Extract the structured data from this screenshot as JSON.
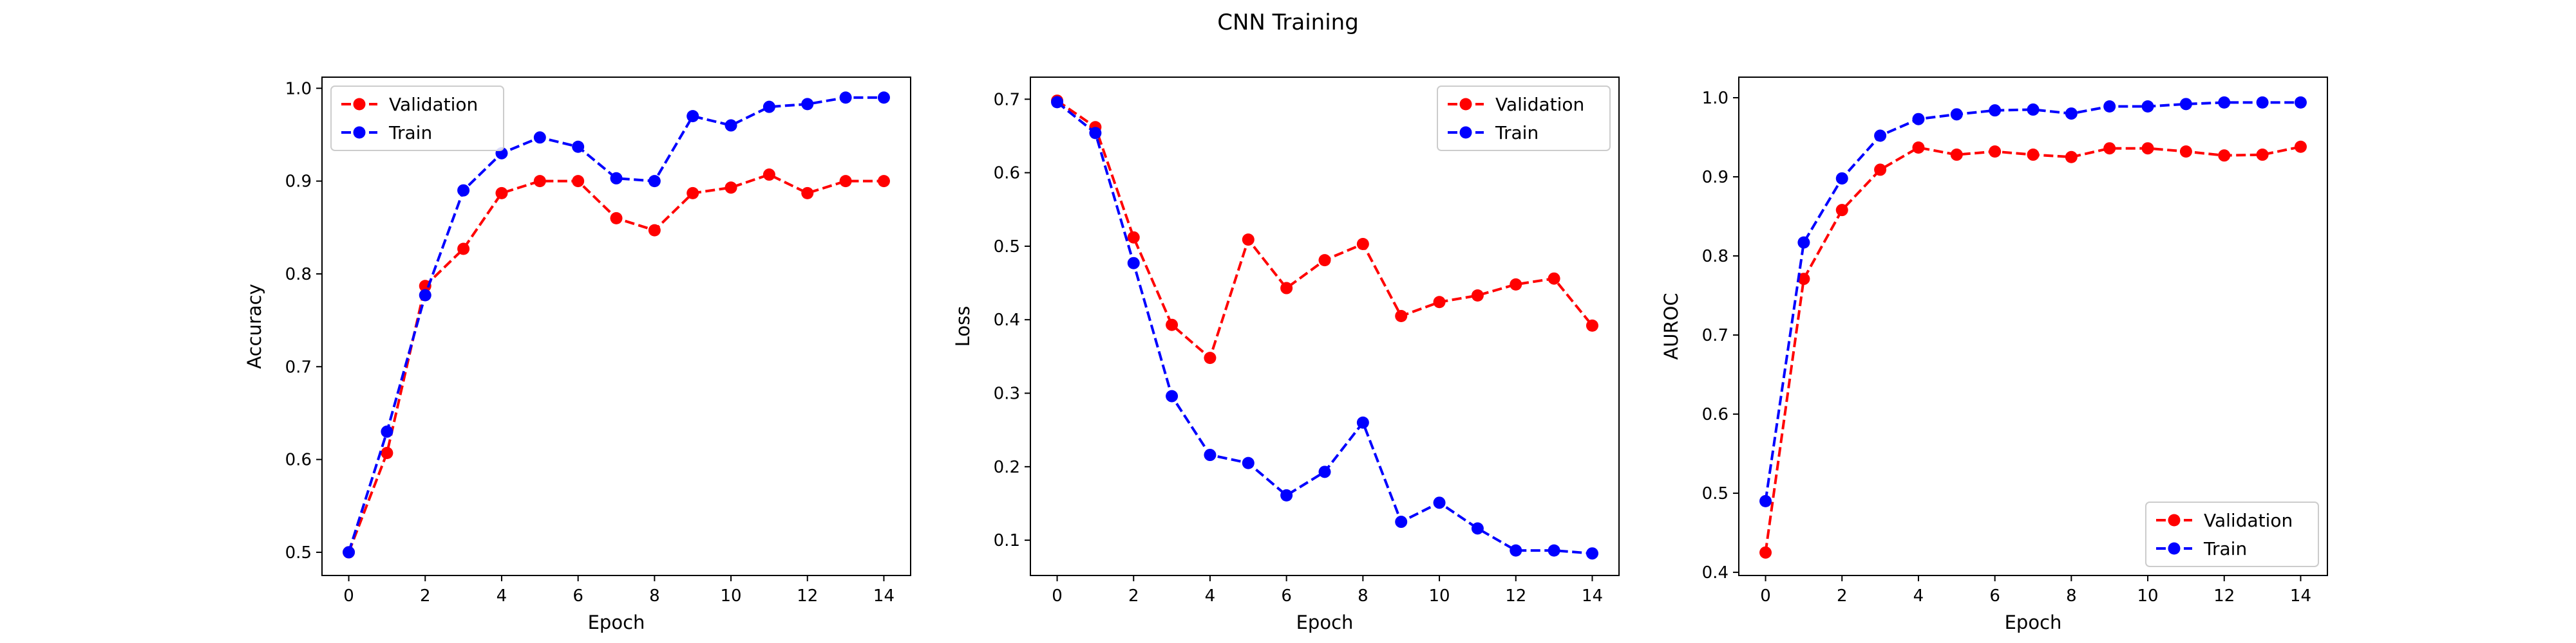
{
  "figure": {
    "title": "CNN Training"
  },
  "chart_data": [
    {
      "type": "line",
      "xlabel": "Epoch",
      "ylabel": "Accuracy",
      "x": [
        0,
        1,
        2,
        3,
        4,
        5,
        6,
        7,
        8,
        9,
        10,
        11,
        12,
        13,
        14
      ],
      "xticks": [
        0,
        2,
        4,
        6,
        8,
        10,
        12,
        14
      ],
      "xlim": [
        -0.7,
        14.7
      ],
      "yticks": [
        0.5,
        0.6,
        0.7,
        0.8,
        0.9,
        1.0
      ],
      "ytick_labels": [
        "0.5",
        "0.6",
        "0.7",
        "0.8",
        "0.9",
        "1.0"
      ],
      "ylim": [
        0.475,
        1.012
      ],
      "legend": "top-left",
      "series": [
        {
          "name": "Validation",
          "color": "#ff0000",
          "values": [
            0.5,
            0.607,
            0.787,
            0.827,
            0.887,
            0.9,
            0.9,
            0.86,
            0.847,
            0.887,
            0.893,
            0.907,
            0.887,
            0.9,
            0.9
          ]
        },
        {
          "name": "Train",
          "color": "#0000ff",
          "values": [
            0.5,
            0.63,
            0.777,
            0.89,
            0.93,
            0.947,
            0.937,
            0.903,
            0.9,
            0.97,
            0.96,
            0.98,
            0.983,
            0.99,
            0.99
          ]
        }
      ]
    },
    {
      "type": "line",
      "xlabel": "Epoch",
      "ylabel": "Loss",
      "x": [
        0,
        1,
        2,
        3,
        4,
        5,
        6,
        7,
        8,
        9,
        10,
        11,
        12,
        13,
        14
      ],
      "xticks": [
        0,
        2,
        4,
        6,
        8,
        10,
        12,
        14
      ],
      "xlim": [
        -0.7,
        14.7
      ],
      "yticks": [
        0.1,
        0.2,
        0.3,
        0.4,
        0.5,
        0.6,
        0.7
      ],
      "ytick_labels": [
        "0.1",
        "0.2",
        "0.3",
        "0.4",
        "0.5",
        "0.6",
        "0.7"
      ],
      "ylim": [
        0.052,
        0.73
      ],
      "legend": "top-right",
      "series": [
        {
          "name": "Validation",
          "color": "#ff0000",
          "values": [
            0.698,
            0.662,
            0.512,
            0.393,
            0.348,
            0.509,
            0.443,
            0.481,
            0.503,
            0.405,
            0.424,
            0.433,
            0.448,
            0.456,
            0.392
          ]
        },
        {
          "name": "Train",
          "color": "#0000ff",
          "values": [
            0.696,
            0.654,
            0.477,
            0.296,
            0.216,
            0.205,
            0.161,
            0.193,
            0.26,
            0.125,
            0.151,
            0.116,
            0.086,
            0.086,
            0.082
          ]
        }
      ]
    },
    {
      "type": "line",
      "xlabel": "Epoch",
      "ylabel": "AUROC",
      "x": [
        0,
        1,
        2,
        3,
        4,
        5,
        6,
        7,
        8,
        9,
        10,
        11,
        12,
        13,
        14
      ],
      "xticks": [
        0,
        2,
        4,
        6,
        8,
        10,
        12,
        14
      ],
      "xlim": [
        -0.7,
        14.7
      ],
      "yticks": [
        0.4,
        0.5,
        0.6,
        0.7,
        0.8,
        0.9,
        1.0
      ],
      "ytick_labels": [
        "0.4",
        "0.5",
        "0.6",
        "0.7",
        "0.8",
        "0.9",
        "1.0"
      ],
      "ylim": [
        0.396,
        1.026
      ],
      "legend": "bottom-right",
      "series": [
        {
          "name": "Validation",
          "color": "#ff0000",
          "values": [
            0.425,
            0.771,
            0.858,
            0.909,
            0.937,
            0.928,
            0.932,
            0.928,
            0.925,
            0.936,
            0.936,
            0.932,
            0.927,
            0.928,
            0.938
          ]
        },
        {
          "name": "Train",
          "color": "#0000ff",
          "values": [
            0.49,
            0.817,
            0.898,
            0.952,
            0.973,
            0.979,
            0.984,
            0.985,
            0.98,
            0.989,
            0.989,
            0.992,
            0.994,
            0.994,
            0.994
          ]
        }
      ]
    }
  ]
}
